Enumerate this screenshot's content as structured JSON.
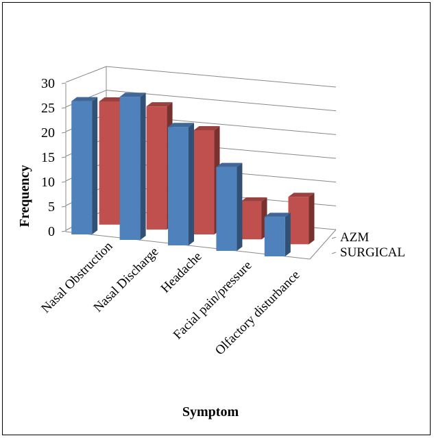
{
  "chart_data": {
    "type": "bar",
    "title": "",
    "xlabel": "Symptom",
    "ylabel": "Frequency",
    "ylim": [
      0,
      30
    ],
    "yticks": [
      0,
      5,
      10,
      15,
      20,
      25,
      30
    ],
    "grid": true,
    "legend_placement": "right (depth axis)",
    "categories": [
      "Nasal Obstruction",
      "Nasal Discharge",
      "Headache",
      "Facial pain/pressure",
      "Olfactory disturbance"
    ],
    "series": [
      {
        "name": "AZM",
        "values": [
          27,
          29,
          24,
          17,
          8
        ],
        "color": "#4f81bd"
      },
      {
        "name": "SURGICAL",
        "values": [
          26,
          26,
          22,
          8,
          10
        ],
        "color": "#c0504d"
      }
    ]
  }
}
